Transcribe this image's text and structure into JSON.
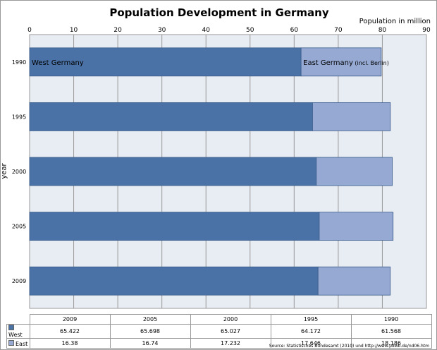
{
  "chart_data": {
    "type": "bar",
    "orientation": "horizontal",
    "stacked": true,
    "title": "Population Development in Germany",
    "xlabel": "Population in million",
    "ylabel": "year",
    "xlim": [
      0,
      90
    ],
    "xticks": [
      "0",
      "10",
      "20",
      "30",
      "40",
      "50",
      "60",
      "70",
      "80",
      "90"
    ],
    "categories": [
      "1990",
      "1995",
      "2000",
      "2005",
      "2009"
    ],
    "series": [
      {
        "name": "West",
        "values": [
          61.568,
          64.172,
          65.027,
          65.698,
          65.422
        ],
        "color": "#4a72a6",
        "label": "West Germany"
      },
      {
        "name": "East",
        "values": [
          18.186,
          17.646,
          17.232,
          16.74,
          16.38
        ],
        "color": "#95a9d3",
        "label": "East Germany",
        "label_note": "(incl. Berlin)"
      }
    ],
    "grid": true,
    "table": {
      "columns": [
        "2009",
        "2005",
        "2000",
        "1995",
        "1990"
      ],
      "rows": [
        {
          "name": "West",
          "values": [
            "65.422",
            "65.698",
            "65.027",
            "64.172",
            "61.568"
          ]
        },
        {
          "name": "East",
          "values": [
            "16.38",
            "16.74",
            "17.232",
            "17.646",
            "18.186"
          ]
        }
      ]
    },
    "source": "Source: Statistisches Bundesamt (2010) und http://www.pdwb.de/nd06.htm"
  }
}
